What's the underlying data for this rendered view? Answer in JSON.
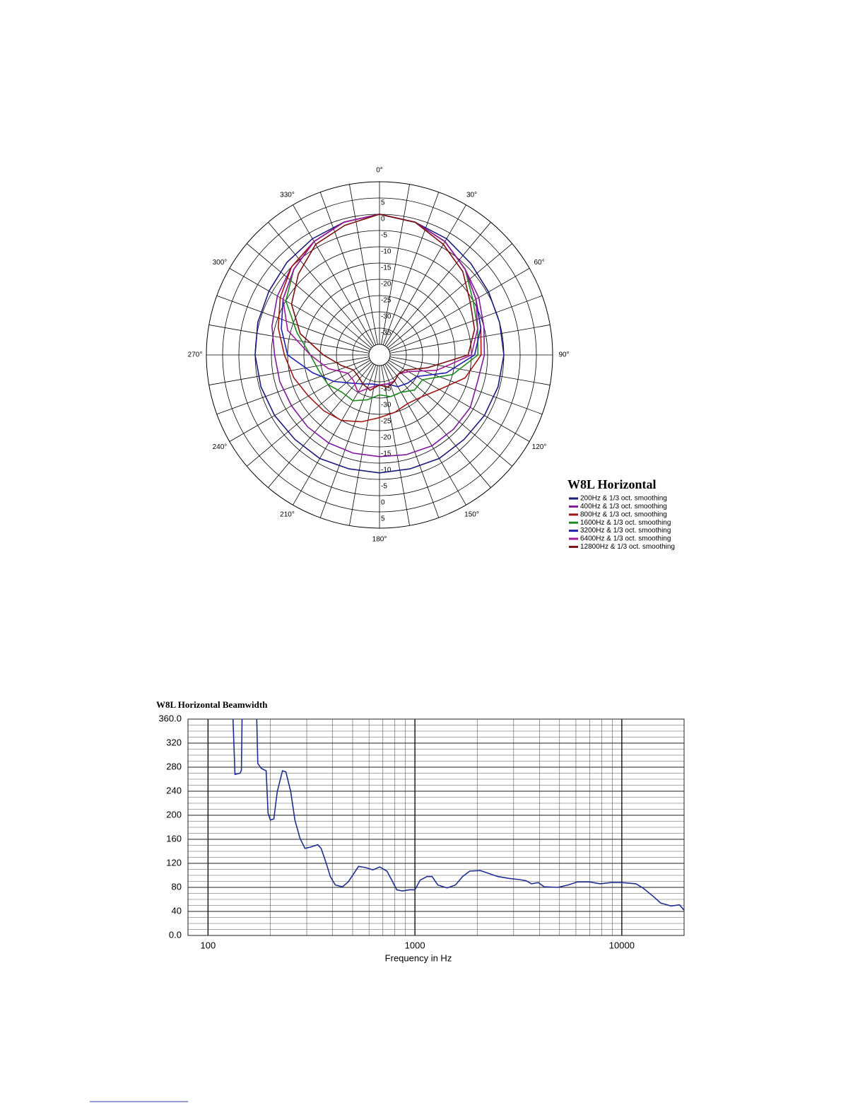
{
  "chart_data": [
    {
      "type": "polar",
      "theta": [
        0,
        15,
        30,
        45,
        60,
        75,
        90,
        105,
        120,
        135,
        150,
        165,
        180,
        195,
        210,
        225,
        240,
        255,
        270,
        285,
        300,
        315,
        330,
        345
      ],
      "rlim": [
        -40,
        10
      ],
      "rticks": [
        5,
        0,
        -5,
        -10,
        -15,
        -20,
        -25,
        -30,
        -35
      ],
      "thetaticks": [
        {
          "value": 0,
          "label": "0°"
        },
        {
          "value": 30,
          "label": "30°"
        },
        {
          "value": 60,
          "label": "60°"
        },
        {
          "value": 90,
          "label": "90°"
        },
        {
          "value": 120,
          "label": "120°"
        },
        {
          "value": 150,
          "label": "150°"
        },
        {
          "value": 180,
          "label": "180°"
        },
        {
          "value": 210,
          "label": "210°"
        },
        {
          "value": 240,
          "label": "240°"
        },
        {
          "value": 270,
          "label": "270°"
        },
        {
          "value": 300,
          "label": "300°"
        },
        {
          "value": 330,
          "label": "330°"
        }
      ],
      "theta_minor_ticks": [
        10,
        20,
        40,
        50,
        70,
        80,
        100,
        110,
        130,
        140,
        160,
        170,
        190,
        200,
        220,
        230,
        250,
        260,
        280,
        290,
        310,
        320,
        340,
        350
      ],
      "legend_title": "W8L Horizontal",
      "series": [
        {
          "name": "200Hz & 1/3 oct. smoothing",
          "color": "#1a1a7a",
          "values": [
            0,
            -1,
            -2,
            -3.5,
            -4.5,
            -5,
            -5,
            -5.5,
            -6,
            -6.5,
            -6.5,
            -7,
            -7,
            -7,
            -6.5,
            -6.5,
            -6,
            -5.5,
            -5,
            -4.5,
            -4,
            -3,
            -2,
            -1
          ]
        },
        {
          "name": "400Hz & 1/3 oct. smoothing",
          "color": "#7d1a9b",
          "values": [
            0,
            -1,
            -3,
            -6,
            -8,
            -10,
            -11,
            -12,
            -11,
            -11,
            -11,
            -11.5,
            -12,
            -12,
            -12,
            -12,
            -12,
            -11.5,
            -11,
            -9,
            -7,
            -5,
            -3,
            -1
          ]
        },
        {
          "name": "800Hz & 1/3 oct. smoothing",
          "color": "#a01515",
          "values": [
            0,
            -1,
            -3,
            -6,
            -9,
            -11,
            -12,
            -16,
            -22,
            -25,
            -26,
            -25,
            -24,
            -22,
            -20,
            -19,
            -18,
            -16,
            -14,
            -11,
            -8,
            -5,
            -3,
            -1
          ]
        },
        {
          "name": "1600Hz & 1/3 oct. smoothing",
          "color": "#1e8a1e",
          "values": [
            0,
            -1,
            -3,
            -6,
            -10,
            -12,
            -13,
            -20,
            -28,
            -28,
            -30,
            -30,
            -31,
            -29,
            -27,
            -27,
            -25,
            -24,
            -22,
            -17,
            -10,
            -6,
            -3,
            -1
          ]
        },
        {
          "name": "3200Hz & 1/3 oct. smoothing",
          "color": "#2020b0",
          "values": [
            0,
            -1,
            -3,
            -6,
            -9,
            -11,
            -14,
            -22,
            -30,
            -31,
            -32,
            -34,
            -34,
            -34,
            -33,
            -31,
            -27,
            -22,
            -15,
            -12,
            -9,
            -6,
            -3,
            -1
          ]
        },
        {
          "name": "6400Hz & 1/3 oct. smoothing",
          "color": "#a01a9a",
          "values": [
            0,
            -1,
            -3,
            -6,
            -9,
            -12,
            -15,
            -25,
            -33,
            -35,
            -34,
            -34,
            -34,
            -33,
            -30,
            -32,
            -32,
            -27,
            -22,
            -14,
            -9,
            -6,
            -3,
            -1
          ]
        },
        {
          "name": "12800Hz & 1/3 oct. smoothing",
          "color": "#7a1010",
          "values": [
            0,
            -1,
            -4,
            -7,
            -11,
            -13,
            -16,
            -28,
            -34,
            -35,
            -34,
            -33,
            -34,
            -32,
            -33,
            -34,
            -34,
            -31,
            -26,
            -18,
            -12,
            -8,
            -4,
            -2
          ]
        }
      ]
    },
    {
      "type": "line",
      "title": "W8L Horizontal Beamwidth",
      "xlabel": "Frequency in Hz",
      "xscale": "log",
      "xlim": [
        80,
        20000
      ],
      "xticks": [
        100,
        1000,
        10000
      ],
      "xminor_ticks": [
        200,
        300,
        400,
        500,
        600,
        700,
        800,
        900,
        2000,
        3000,
        4000,
        5000,
        6000,
        7000,
        8000,
        9000,
        20000
      ],
      "ylim": [
        0,
        360
      ],
      "yticks": [
        {
          "value": 0,
          "label": "0.0"
        },
        40,
        80,
        120,
        160,
        200,
        240,
        280,
        320,
        {
          "value": 360,
          "label": "360.0"
        }
      ],
      "yminor_ticks": [
        10,
        20,
        30,
        50,
        60,
        70,
        90,
        100,
        110,
        130,
        140,
        150,
        170,
        180,
        190,
        210,
        220,
        230,
        250,
        260,
        270,
        290,
        300,
        310,
        330,
        340,
        350
      ],
      "grid": true,
      "color": "#1f2f8f",
      "x": [
        132,
        135,
        143,
        145,
        146,
        160,
        172,
        174,
        181,
        191,
        195,
        200,
        208,
        216,
        229,
        238,
        251,
        263,
        278,
        294,
        313,
        339,
        352,
        372,
        390,
        412,
        446,
        476,
        502,
        534,
        578,
        626,
        676,
        732,
        773,
        817,
        870,
        940,
        1000,
        1060,
        1144,
        1210,
        1290,
        1430,
        1570,
        1700,
        1840,
        2070,
        2240,
        2520,
        2850,
        3200,
        3450,
        3660,
        3950,
        4210,
        4900,
        5500,
        6110,
        6990,
        7860,
        8850,
        10000,
        11700,
        12640,
        14200,
        15400,
        17300,
        19000,
        20000
      ],
      "values": [
        360,
        268,
        270,
        275,
        360,
        null,
        360,
        286,
        278,
        274,
        204,
        192,
        194,
        239,
        274,
        272,
        239,
        192,
        162,
        145,
        147,
        151,
        145,
        121,
        98,
        84,
        81,
        89,
        101,
        115,
        113,
        109,
        114,
        107,
        92,
        76,
        74,
        76,
        76,
        92,
        98,
        98,
        84,
        79,
        84,
        98,
        107,
        108,
        104,
        98,
        95,
        93,
        91,
        86,
        88,
        81,
        80,
        84,
        89,
        89,
        86,
        88,
        88,
        86,
        79,
        65,
        54,
        49,
        51,
        42
      ]
    }
  ]
}
